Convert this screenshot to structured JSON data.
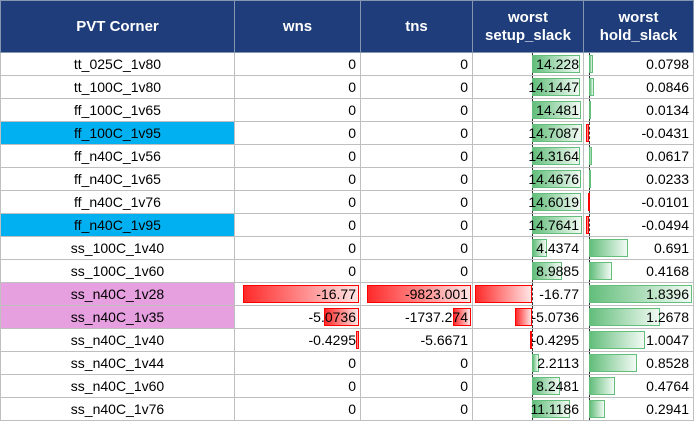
{
  "headers": {
    "corner": "PVT Corner",
    "wns": "wns",
    "tns": "tns",
    "setup_line1": "worst",
    "setup_line2": "setup_slack",
    "hold_line1": "worst",
    "hold_line2": "hold_slack"
  },
  "colors": {
    "header_bg": "#1f3d7a",
    "highlight_blue": "#00b0f0",
    "highlight_pink": "#e6a0e0",
    "bar_red": "#ff0000",
    "bar_green": "#63be7b"
  },
  "rows": [
    {
      "corner": "tt_025C_1v80",
      "wns": "0",
      "tns": "0",
      "setup": "14.228",
      "hold": "0.0798",
      "highlight": ""
    },
    {
      "corner": "tt_100C_1v80",
      "wns": "0",
      "tns": "0",
      "setup": "14.1447",
      "hold": "0.0846",
      "highlight": ""
    },
    {
      "corner": "ff_100C_1v65",
      "wns": "0",
      "tns": "0",
      "setup": "14.481",
      "hold": "0.0134",
      "highlight": ""
    },
    {
      "corner": "ff_100C_1v95",
      "wns": "0",
      "tns": "0",
      "setup": "14.7087",
      "hold": "-0.0431",
      "highlight": "blue"
    },
    {
      "corner": "ff_n40C_1v56",
      "wns": "0",
      "tns": "0",
      "setup": "14.3164",
      "hold": "0.0617",
      "highlight": ""
    },
    {
      "corner": "ff_n40C_1v65",
      "wns": "0",
      "tns": "0",
      "setup": "14.4676",
      "hold": "0.0233",
      "highlight": ""
    },
    {
      "corner": "ff_n40C_1v76",
      "wns": "0",
      "tns": "0",
      "setup": "14.6019",
      "hold": "-0.0101",
      "highlight": ""
    },
    {
      "corner": "ff_n40C_1v95",
      "wns": "0",
      "tns": "0",
      "setup": "14.7641",
      "hold": "-0.0494",
      "highlight": "blue"
    },
    {
      "corner": "ss_100C_1v40",
      "wns": "0",
      "tns": "0",
      "setup": "4.4374",
      "hold": "0.691",
      "highlight": ""
    },
    {
      "corner": "ss_100C_1v60",
      "wns": "0",
      "tns": "0",
      "setup": "8.9885",
      "hold": "0.4168",
      "highlight": ""
    },
    {
      "corner": "ss_n40C_1v28",
      "wns": "-16.77",
      "tns": "-9823.001",
      "setup": "-16.77",
      "hold": "1.8396",
      "highlight": "pink"
    },
    {
      "corner": "ss_n40C_1v35",
      "wns": "-5.0736",
      "tns": "-1737.274",
      "setup": "-5.0736",
      "hold": "1.2678",
      "highlight": "pink"
    },
    {
      "corner": "ss_n40C_1v40",
      "wns": "-0.4295",
      "tns": "-5.6671",
      "setup": "-0.4295",
      "hold": "1.0047",
      "highlight": ""
    },
    {
      "corner": "ss_n40C_1v44",
      "wns": "0",
      "tns": "0",
      "setup": "2.2113",
      "hold": "0.8528",
      "highlight": ""
    },
    {
      "corner": "ss_n40C_1v60",
      "wns": "0",
      "tns": "0",
      "setup": "8.2481",
      "hold": "0.4764",
      "highlight": ""
    },
    {
      "corner": "ss_n40C_1v76",
      "wns": "0",
      "tns": "0",
      "setup": "11.1186",
      "hold": "0.2941",
      "highlight": ""
    }
  ]
}
